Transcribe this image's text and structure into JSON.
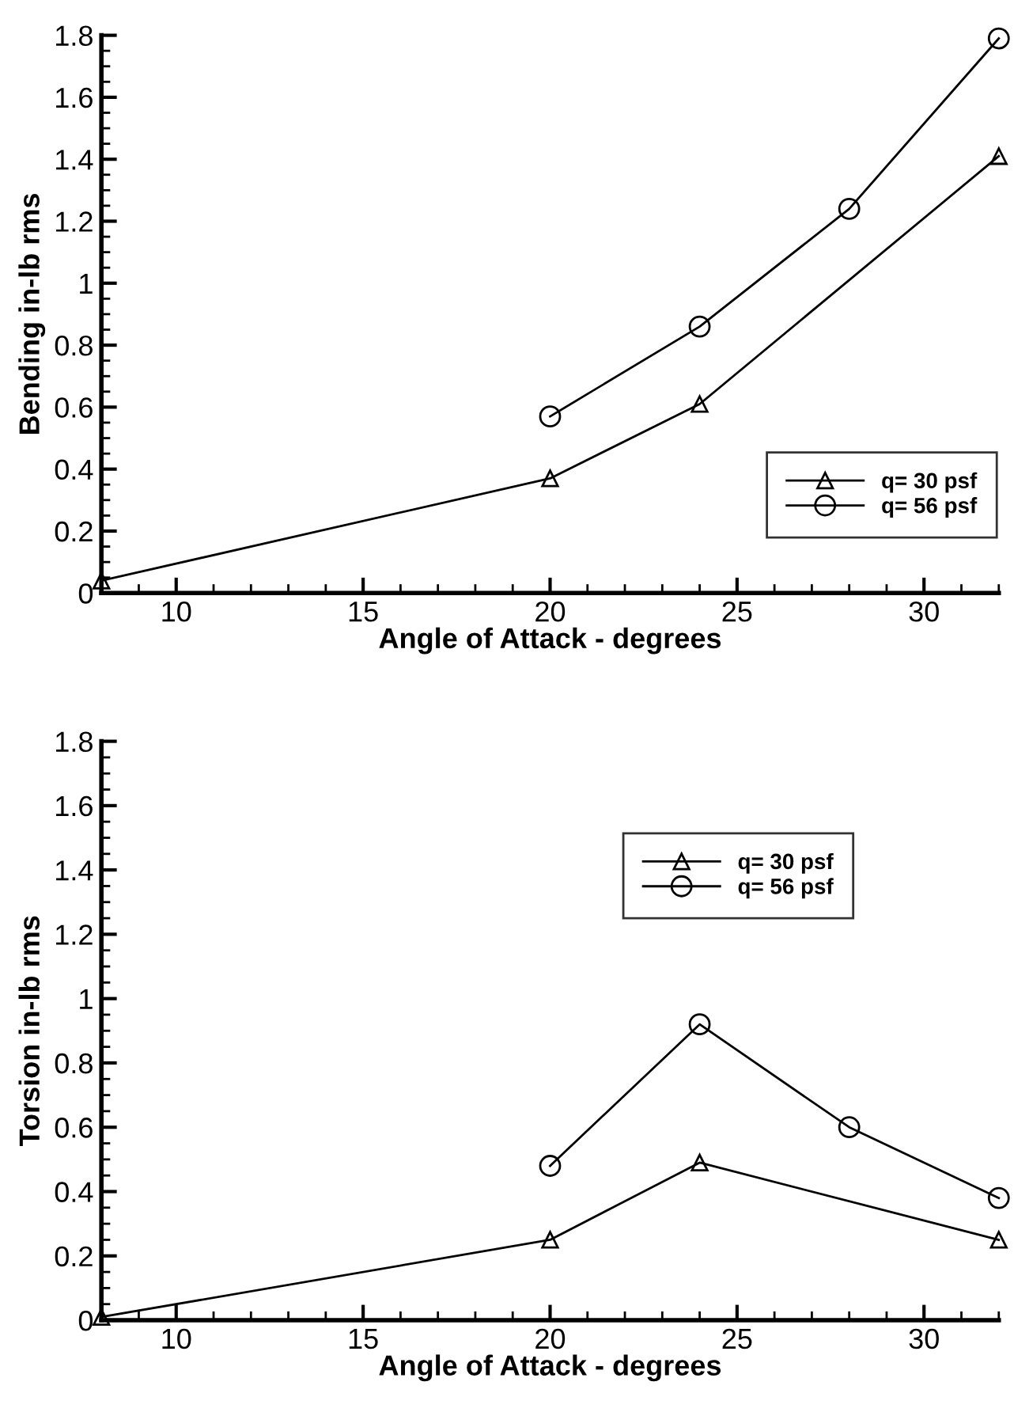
{
  "chart_data": [
    {
      "type": "line",
      "xlabel": "Angle of Attack - degrees",
      "ylabel": "Bending in-lb rms",
      "xlim": [
        8,
        32
      ],
      "ylim": [
        0,
        1.8
      ],
      "xticks": [
        10,
        15,
        20,
        25,
        30
      ],
      "yticks": [
        0,
        0.2,
        0.4,
        0.6,
        0.8,
        {
          "value": 1,
          "label": "1"
        },
        1.2,
        1.4,
        1.6,
        1.8
      ],
      "grid": false,
      "legend": "bottom right",
      "series": [
        {
          "name": "q= 30 psf",
          "color": "#000000",
          "marker": "triangle",
          "x": [
            8,
            20,
            24,
            32
          ],
          "values": [
            0.04,
            0.37,
            0.61,
            1.41
          ]
        },
        {
          "name": "q= 56 psf",
          "color": "#000000",
          "marker": "circle",
          "x": [
            20,
            24,
            28,
            32
          ],
          "values": [
            0.57,
            0.86,
            1.24,
            1.79
          ]
        }
      ]
    },
    {
      "type": "line",
      "xlabel": "Angle of Attack - degrees",
      "ylabel": "Torsion in-lb rms",
      "xlim": [
        8,
        32
      ],
      "ylim": [
        0,
        1.8
      ],
      "xticks": [
        10,
        15,
        20,
        25,
        30
      ],
      "yticks": [
        0,
        0.2,
        0.4,
        0.6,
        0.8,
        {
          "value": 1,
          "label": "1"
        },
        1.2,
        1.4,
        1.6,
        1.8
      ],
      "grid": false,
      "legend": "top right",
      "series": [
        {
          "name": "q= 30 psf",
          "color": "#000000",
          "marker": "triangle",
          "x": [
            8,
            20,
            24,
            32
          ],
          "values": [
            0.01,
            0.25,
            0.49,
            0.25
          ]
        },
        {
          "name": "q= 56 psf",
          "color": "#000000",
          "marker": "circle",
          "x": [
            20,
            24,
            28,
            32
          ],
          "values": [
            0.48,
            0.92,
            0.6,
            0.38
          ]
        }
      ]
    }
  ]
}
